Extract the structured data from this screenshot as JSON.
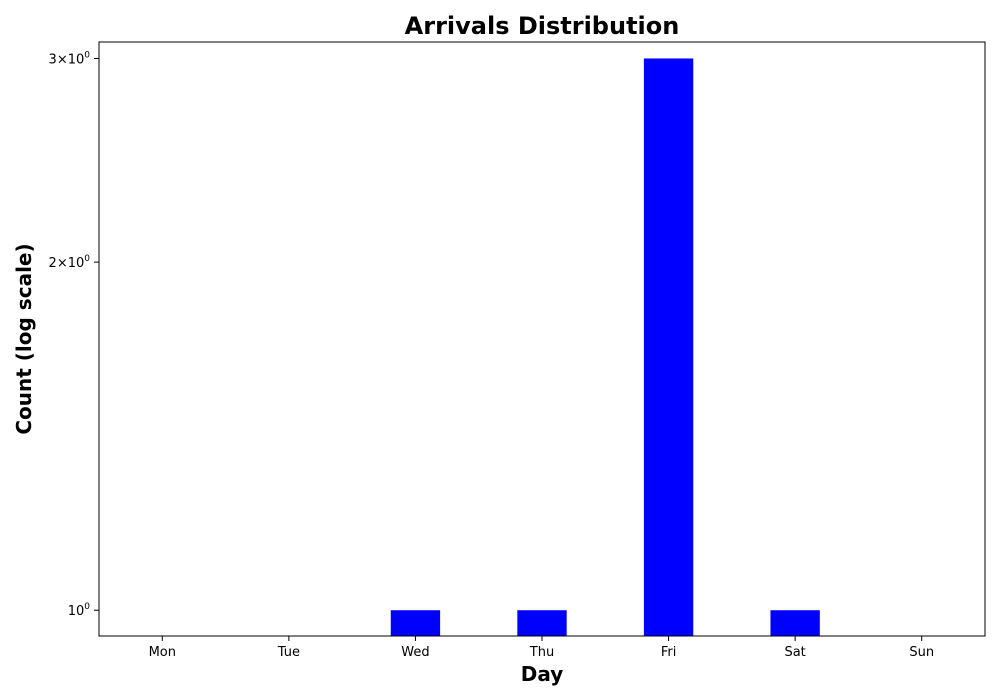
{
  "chart_data": {
    "type": "bar",
    "title": "Arrivals Distribution",
    "xlabel": "Day",
    "ylabel": "Count (log scale)",
    "y_scale": "log",
    "grid": false,
    "categories": [
      "Mon",
      "Tue",
      "Wed",
      "Thu",
      "Fri",
      "Sat",
      "Sun"
    ],
    "values": [
      0,
      0,
      1,
      1,
      3,
      1,
      0
    ],
    "ylim": [
      0.95,
      3.1
    ],
    "y_ticks": [
      {
        "value": 1,
        "label_base": "10",
        "label_exp": "0",
        "label_coef": ""
      },
      {
        "value": 2,
        "label_base": "10",
        "label_exp": "0",
        "label_coef": "2×"
      },
      {
        "value": 3,
        "label_base": "10",
        "label_exp": "0",
        "label_coef": "3×"
      }
    ],
    "bar_color": "#0000ff"
  }
}
